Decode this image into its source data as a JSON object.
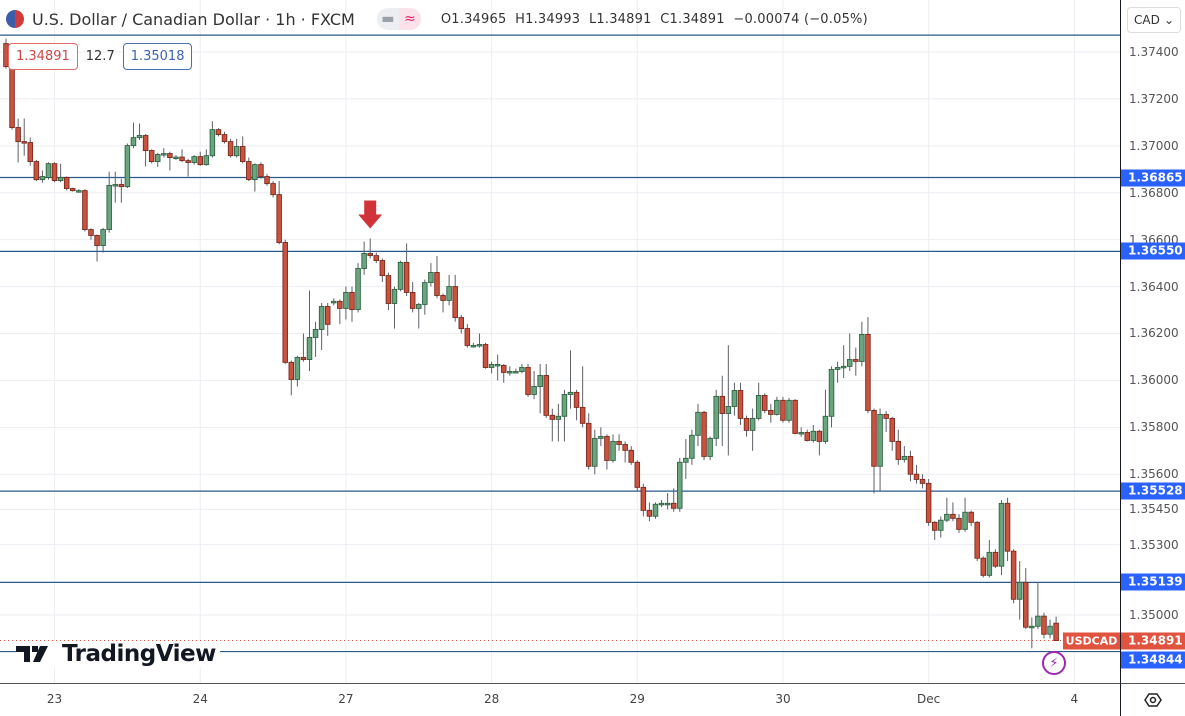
{
  "header": {
    "title": "U.S. Dollar / Canadian Dollar · 1h · FXCM",
    "ohlc": {
      "o_label": "O",
      "o": "1.34965",
      "h_label": "H",
      "h": "1.34993",
      "l_label": "L",
      "l": "1.34891",
      "c_label": "C",
      "c": "1.34891",
      "change": "−0.00074 (−0.05%)"
    },
    "sell_price": "1.34891",
    "spread": "12.7",
    "buy_price": "1.35018"
  },
  "currency_select": "CAD",
  "logo_text": "TradingView",
  "symbol_label": "USDCAD",
  "colors": {
    "up": "#6aa57f",
    "down": "#c9533f",
    "level_line": "#2a5a8c",
    "level_label": "#2962ff",
    "last_price": "#e0533f",
    "arrow": "#d13438"
  },
  "chart_data": {
    "type": "candlestick",
    "interval": "1h",
    "grid": true,
    "y_ticks": [
      1.374,
      1.372,
      1.37,
      1.368,
      1.366,
      1.364,
      1.362,
      1.36,
      1.358,
      1.356,
      1.3545,
      1.353,
      1.35
    ],
    "y_tick_labels": [
      "1.37400",
      "1.37200",
      "1.37000",
      "1.36800",
      "1.36600",
      "1.36400",
      "1.36200",
      "1.36000",
      "1.35800",
      "1.35600",
      "1.35450",
      "1.35300",
      "1.35000"
    ],
    "x_ticks": [
      {
        "label": "23",
        "bar": 8
      },
      {
        "label": "24",
        "bar": 32
      },
      {
        "label": "27",
        "bar": 56
      },
      {
        "label": "28",
        "bar": 80
      },
      {
        "label": "29",
        "bar": 104
      },
      {
        "label": "30",
        "bar": 128
      },
      {
        "label": "Dec",
        "bar": 152
      },
      {
        "label": "4",
        "bar": 176
      }
    ],
    "horizontal_levels": [
      {
        "value": 1.37472,
        "label": ""
      },
      {
        "value": 1.36865,
        "label": "1.36865"
      },
      {
        "value": 1.3655,
        "label": "1.36550"
      },
      {
        "value": 1.35528,
        "label": "1.35528"
      },
      {
        "value": 1.35139,
        "label": "1.35139"
      },
      {
        "value": 1.34844,
        "label": "1.34844"
      }
    ],
    "last_price": {
      "value": 1.34891,
      "label": "1.34891"
    },
    "arrow_marker": {
      "bar": 60,
      "direction": "down"
    },
    "candles_ohlc": [
      [
        1.37436,
        1.37457,
        1.37329,
        1.37338
      ],
      [
        1.37338,
        1.37345,
        1.37069,
        1.37078
      ],
      [
        1.37078,
        1.37116,
        1.36929,
        1.37018
      ],
      [
        1.37018,
        1.37116,
        1.36958,
        1.37014
      ],
      [
        1.37014,
        1.37035,
        1.36916,
        1.36933
      ],
      [
        1.36933,
        1.3694,
        1.3685,
        1.36856
      ],
      [
        1.36856,
        1.36895,
        1.36843,
        1.36869
      ],
      [
        1.36865,
        1.3693,
        1.36856,
        1.36924
      ],
      [
        1.36924,
        1.3693,
        1.36845,
        1.36852
      ],
      [
        1.36852,
        1.36924,
        1.36845,
        1.36865
      ],
      [
        1.36865,
        1.3687,
        1.3681,
        1.36818
      ],
      [
        1.36818,
        1.36822,
        1.36805,
        1.36809
      ],
      [
        1.36809,
        1.36815,
        1.368,
        1.36809
      ],
      [
        1.36809,
        1.36815,
        1.36635,
        1.36643
      ],
      [
        1.36643,
        1.36648,
        1.366,
        1.36618
      ],
      [
        1.36618,
        1.36622,
        1.36507,
        1.36575
      ],
      [
        1.36575,
        1.3665,
        1.36545,
        1.36643
      ],
      [
        1.36643,
        1.3689,
        1.3663,
        1.36831
      ],
      [
        1.36831,
        1.3689,
        1.36758,
        1.36835
      ],
      [
        1.36835,
        1.3686,
        1.36758,
        1.36826
      ],
      [
        1.36826,
        1.3701,
        1.3682,
        1.37001
      ],
      [
        1.37001,
        1.37099,
        1.3699,
        1.37035
      ],
      [
        1.37035,
        1.37095,
        1.37025,
        1.37044
      ],
      [
        1.37044,
        1.3705,
        1.36912,
        1.3698
      ],
      [
        1.3698,
        1.36985,
        1.36925,
        1.36933
      ],
      [
        1.36933,
        1.3697,
        1.3691,
        1.36963
      ],
      [
        1.36963,
        1.3699,
        1.3695,
        1.36967
      ],
      [
        1.36967,
        1.36975,
        1.36895,
        1.3695
      ],
      [
        1.3695,
        1.3696,
        1.3694,
        1.36952
      ],
      [
        1.36952,
        1.36985,
        1.3693,
        1.36937
      ],
      [
        1.36937,
        1.36945,
        1.36869,
        1.36929
      ],
      [
        1.36929,
        1.3696,
        1.3692,
        1.36954
      ],
      [
        1.36954,
        1.36975,
        1.36915,
        1.3692
      ],
      [
        1.3692,
        1.36985,
        1.36915,
        1.36958
      ],
      [
        1.36958,
        1.37105,
        1.3695,
        1.37069
      ],
      [
        1.37069,
        1.37075,
        1.3704,
        1.37048
      ],
      [
        1.37048,
        1.3706,
        1.3701,
        1.37018
      ],
      [
        1.37018,
        1.3703,
        1.3695,
        1.36958
      ],
      [
        1.36958,
        1.3703,
        1.3695,
        1.36997
      ],
      [
        1.36997,
        1.3704,
        1.36925,
        1.36933
      ],
      [
        1.36933,
        1.3695,
        1.3685,
        1.36856
      ],
      [
        1.36856,
        1.36925,
        1.36805,
        1.3692
      ],
      [
        1.3692,
        1.3693,
        1.3686,
        1.36869
      ],
      [
        1.36869,
        1.3688,
        1.3683,
        1.36839
      ],
      [
        1.36839,
        1.3685,
        1.3678,
        1.36792
      ],
      [
        1.36792,
        1.3685,
        1.3658,
        1.36588
      ],
      [
        1.36588,
        1.366,
        1.3607,
        1.36077
      ],
      [
        1.36077,
        1.36085,
        1.35936,
        1.36004
      ],
      [
        1.36004,
        1.36105,
        1.35974,
        1.36098
      ],
      [
        1.36098,
        1.362,
        1.3608,
        1.36089
      ],
      [
        1.36089,
        1.36383,
        1.3604,
        1.36183
      ],
      [
        1.36183,
        1.3625,
        1.361,
        1.36217
      ],
      [
        1.36217,
        1.3633,
        1.3613,
        1.36315
      ],
      [
        1.36315,
        1.3633,
        1.3619,
        1.36239
      ],
      [
        1.36335,
        1.3635,
        1.3632,
        1.36337
      ],
      [
        1.36337,
        1.36345,
        1.3624,
        1.36307
      ],
      [
        1.36307,
        1.364,
        1.3626,
        1.36375
      ],
      [
        1.36375,
        1.364,
        1.3625,
        1.36302
      ],
      [
        1.36302,
        1.365,
        1.3629,
        1.36477
      ],
      [
        1.36477,
        1.36592,
        1.3645,
        1.36541
      ],
      [
        1.36541,
        1.36605,
        1.3652,
        1.36532
      ],
      [
        1.36532,
        1.36545,
        1.365,
        1.36511
      ],
      [
        1.36511,
        1.3652,
        1.3642,
        1.36447
      ],
      [
        1.36447,
        1.3646,
        1.363,
        1.36328
      ],
      [
        1.36328,
        1.364,
        1.36221,
        1.36388
      ],
      [
        1.36388,
        1.3651,
        1.3638,
        1.36503
      ],
      [
        1.36503,
        1.36584,
        1.3636,
        1.36375
      ],
      [
        1.36375,
        1.3642,
        1.3629,
        1.36307
      ],
      [
        1.36307,
        1.3633,
        1.36221,
        1.36324
      ],
      [
        1.36324,
        1.3643,
        1.3628,
        1.36417
      ],
      [
        1.36417,
        1.365,
        1.364,
        1.3646
      ],
      [
        1.3646,
        1.3653,
        1.3635,
        1.36362
      ],
      [
        1.36362,
        1.3637,
        1.3629,
        1.36341
      ],
      [
        1.36341,
        1.3645,
        1.3632,
        1.364
      ],
      [
        1.364,
        1.3645,
        1.3625,
        1.36268
      ],
      [
        1.36268,
        1.3628,
        1.362,
        1.36221
      ],
      [
        1.36221,
        1.3624,
        1.3614,
        1.36149
      ],
      [
        1.36149,
        1.3616,
        1.3614,
        1.36149
      ],
      [
        1.36153,
        1.362,
        1.3614,
        1.36153
      ],
      [
        1.36153,
        1.3616,
        1.3605,
        1.36055
      ],
      [
        1.36055,
        1.3608,
        1.3603,
        1.36068
      ],
      [
        1.36068,
        1.3611,
        1.36,
        1.36068
      ],
      [
        1.36064,
        1.3607,
        1.3599,
        1.36034
      ],
      [
        1.36034,
        1.3606,
        1.3602,
        1.36038
      ],
      [
        1.36038,
        1.3605,
        1.3603,
        1.36038
      ],
      [
        1.36038,
        1.3607,
        1.3603,
        1.36055
      ],
      [
        1.36055,
        1.3607,
        1.3593,
        1.3594
      ],
      [
        1.3594,
        1.3604,
        1.3592,
        1.35974
      ],
      [
        1.35974,
        1.3607,
        1.3586,
        1.36021
      ],
      [
        1.36021,
        1.3607,
        1.3584,
        1.35851
      ],
      [
        1.35851,
        1.3588,
        1.3574,
        1.35834
      ],
      [
        1.35834,
        1.359,
        1.3574,
        1.35847
      ],
      [
        1.35847,
        1.3596,
        1.3574,
        1.3594
      ],
      [
        1.3594,
        1.36128,
        1.3588,
        1.35949
      ],
      [
        1.35949,
        1.3596,
        1.3583,
        1.35885
      ],
      [
        1.35885,
        1.3606,
        1.358,
        1.35817
      ],
      [
        1.35817,
        1.3586,
        1.3562,
        1.35634
      ],
      [
        1.35634,
        1.3579,
        1.356,
        1.35753
      ],
      [
        1.35753,
        1.358,
        1.3572,
        1.35761
      ],
      [
        1.35761,
        1.3577,
        1.3562,
        1.35659
      ],
      [
        1.35659,
        1.3577,
        1.3565,
        1.3574
      ],
      [
        1.3574,
        1.3577,
        1.357,
        1.35727
      ],
      [
        1.35727,
        1.3574,
        1.3565,
        1.35702
      ],
      [
        1.35702,
        1.3572,
        1.3564,
        1.35651
      ],
      [
        1.35651,
        1.3566,
        1.3553,
        1.35544
      ],
      [
        1.35544,
        1.3556,
        1.3542,
        1.35446
      ],
      [
        1.35446,
        1.3548,
        1.354,
        1.35421
      ],
      [
        1.35421,
        1.3548,
        1.3541,
        1.35472
      ],
      [
        1.35472,
        1.3549,
        1.3546,
        1.35476
      ],
      [
        1.35476,
        1.3552,
        1.3545,
        1.35476
      ],
      [
        1.35476,
        1.3554,
        1.3544,
        1.35455
      ],
      [
        1.35455,
        1.3567,
        1.3544,
        1.35651
      ],
      [
        1.35651,
        1.3575,
        1.3558,
        1.35668
      ],
      [
        1.35668,
        1.3579,
        1.3564,
        1.35766
      ],
      [
        1.35766,
        1.359,
        1.3572,
        1.35864
      ],
      [
        1.35864,
        1.3587,
        1.3566,
        1.35676
      ],
      [
        1.35676,
        1.3576,
        1.3566,
        1.35753
      ],
      [
        1.35753,
        1.3596,
        1.3572,
        1.35932
      ],
      [
        1.35932,
        1.3602,
        1.3572,
        1.35859
      ],
      [
        1.35859,
        1.3615,
        1.3568,
        1.35889
      ],
      [
        1.35889,
        1.3599,
        1.3585,
        1.35957
      ],
      [
        1.35957,
        1.3599,
        1.3581,
        1.35838
      ],
      [
        1.35838,
        1.3585,
        1.3576,
        1.35787
      ],
      [
        1.35787,
        1.3588,
        1.357,
        1.35838
      ],
      [
        1.35838,
        1.3599,
        1.3583,
        1.35936
      ],
      [
        1.35936,
        1.35945,
        1.3586,
        1.35872
      ],
      [
        1.35872,
        1.359,
        1.3582,
        1.35855
      ],
      [
        1.35855,
        1.3593,
        1.3585,
        1.35915
      ],
      [
        1.35915,
        1.3593,
        1.3582,
        1.3583
      ],
      [
        1.3583,
        1.35925,
        1.3582,
        1.35915
      ],
      [
        1.35915,
        1.3592,
        1.3577,
        1.35774
      ],
      [
        1.35774,
        1.358,
        1.3576,
        1.35778
      ],
      [
        1.35778,
        1.3579,
        1.3574,
        1.35744
      ],
      [
        1.35744,
        1.3581,
        1.35735,
        1.35783
      ],
      [
        1.35783,
        1.3579,
        1.3568,
        1.3574
      ],
      [
        1.3574,
        1.3596,
        1.3573,
        1.35847
      ],
      [
        1.35847,
        1.3606,
        1.358,
        1.36047
      ],
      [
        1.36047,
        1.3608,
        1.3599,
        1.36055
      ],
      [
        1.36055,
        1.3615,
        1.3601,
        1.3606
      ],
      [
        1.3606,
        1.362,
        1.3604,
        1.36089
      ],
      [
        1.36089,
        1.3614,
        1.3602,
        1.36081
      ],
      [
        1.36081,
        1.3625,
        1.3606,
        1.36196
      ],
      [
        1.36196,
        1.3627,
        1.3586,
        1.35872
      ],
      [
        1.35872,
        1.3588,
        1.35519,
        1.35634
      ],
      [
        1.35634,
        1.3588,
        1.3553,
        1.35855
      ],
      [
        1.35855,
        1.3587,
        1.3578,
        1.35838
      ],
      [
        1.35838,
        1.35845,
        1.357,
        1.3574
      ],
      [
        1.3574,
        1.3579,
        1.3564,
        1.35663
      ],
      [
        1.35663,
        1.3572,
        1.3565,
        1.35676
      ],
      [
        1.35676,
        1.357,
        1.3557,
        1.356
      ],
      [
        1.356,
        1.3564,
        1.3556,
        1.35578
      ],
      [
        1.35578,
        1.356,
        1.3554,
        1.35561
      ],
      [
        1.35561,
        1.3558,
        1.3538,
        1.35395
      ],
      [
        1.35395,
        1.354,
        1.3532,
        1.35361
      ],
      [
        1.35361,
        1.3542,
        1.3533,
        1.35404
      ],
      [
        1.35404,
        1.355,
        1.35395,
        1.35429
      ],
      [
        1.35429,
        1.3548,
        1.354,
        1.35412
      ],
      [
        1.35412,
        1.3543,
        1.3535,
        1.35365
      ],
      [
        1.35365,
        1.355,
        1.35355,
        1.35438
      ],
      [
        1.35438,
        1.35445,
        1.3538,
        1.35395
      ],
      [
        1.35395,
        1.354,
        1.3523,
        1.35242
      ],
      [
        1.35242,
        1.3525,
        1.3516,
        1.35169
      ],
      [
        1.35169,
        1.3532,
        1.3516,
        1.35267
      ],
      [
        1.35267,
        1.3528,
        1.352,
        1.35208
      ],
      [
        1.35208,
        1.3549,
        1.3517,
        1.35476
      ],
      [
        1.35476,
        1.355,
        1.3523,
        1.35272
      ],
      [
        1.35272,
        1.3528,
        1.3505,
        1.35067
      ],
      [
        1.35067,
        1.3523,
        1.3498,
        1.35139
      ],
      [
        1.35139,
        1.352,
        1.3494,
        1.34948
      ],
      [
        1.34948,
        1.3499,
        1.34858,
        1.34952
      ],
      [
        1.34952,
        1.35139,
        1.3494,
        1.34995
      ],
      [
        1.34995,
        1.3501,
        1.349,
        1.34918
      ],
      [
        1.34918,
        1.3498,
        1.349,
        1.34952
      ],
      [
        1.34965,
        1.34993,
        1.34891,
        1.34891
      ]
    ]
  }
}
